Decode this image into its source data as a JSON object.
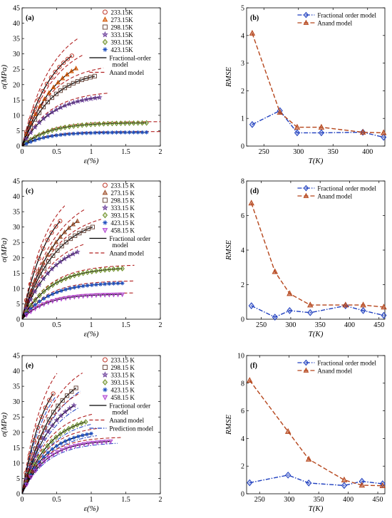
{
  "chart_data": [
    {
      "id": "a",
      "type": "line",
      "panel_label": "(a)",
      "xlabel": "ε(%)",
      "ylabel": "σ(MPa)",
      "xlim": [
        0,
        2
      ],
      "ylim": [
        0,
        45
      ],
      "xticks": [
        "0",
        "0.5",
        "1",
        "1.5",
        "2"
      ],
      "yticks": [
        "0",
        "5",
        "10",
        "15",
        "20",
        "25",
        "30",
        "35",
        "40",
        "45"
      ],
      "xtick_values": [
        0,
        0.5,
        1,
        1.5,
        2
      ],
      "ytick_values": [
        0,
        5,
        10,
        15,
        20,
        25,
        30,
        35,
        40,
        45
      ],
      "legend": {
        "position": "top-right",
        "markers": [
          {
            "label": "233.15K",
            "marker": "circle",
            "color": "#c0392b"
          },
          {
            "label": "273.15K",
            "marker": "triangle",
            "color": "#d35400"
          },
          {
            "label": "298.15K",
            "marker": "square",
            "color": "#6d4c41"
          },
          {
            "label": "333.15K",
            "marker": "star",
            "color": "#6a3d9a"
          },
          {
            "label": "393.15K",
            "marker": "diamond",
            "color": "#6b8e23"
          },
          {
            "label": "423.15K",
            "marker": "asterisk",
            "color": "#1f4fbf"
          }
        ],
        "lines": [
          {
            "label": "Fractional-order model",
            "style": "solid",
            "color": "#000000"
          },
          {
            "label": "Anand model",
            "style": "dashed",
            "color": "#b22222"
          }
        ]
      },
      "series": [
        {
          "marker": "circle",
          "color": "#c0392b",
          "sat": 37,
          "eps_max": 0.72,
          "k": 2.2
        },
        {
          "marker": "triangle",
          "color": "#d35400",
          "sat": 32,
          "eps_max": 0.78,
          "k": 2.0
        },
        {
          "marker": "square",
          "color": "#6d4c41",
          "sat": 25,
          "eps_max": 1.05,
          "k": 2.3
        },
        {
          "marker": "star",
          "color": "#6a3d9a",
          "sat": 17,
          "eps_max": 1.12,
          "k": 2.4
        },
        {
          "marker": "diamond",
          "color": "#6b8e23",
          "sat": 7.6,
          "eps_max": 1.8,
          "k": 2.6
        },
        {
          "marker": "asterisk",
          "color": "#1f4fbf",
          "sat": 4.5,
          "eps_max": 1.8,
          "k": 3.0
        }
      ],
      "anand_scale": [
        1.12,
        1.1,
        1.08,
        1.06,
        1.05,
        1.05
      ]
    },
    {
      "id": "b",
      "type": "line",
      "panel_label": "(b)",
      "xlabel": "T(K)",
      "ylabel": "RMSE",
      "xlim": [
        225,
        425
      ],
      "ylim": [
        0,
        5
      ],
      "xticks": [
        "250",
        "300",
        "350",
        "400"
      ],
      "yticks": [
        "0",
        "1",
        "2",
        "3",
        "4",
        "5"
      ],
      "xtick_values": [
        250,
        300,
        350,
        400
      ],
      "ytick_values": [
        0,
        1,
        2,
        3,
        4,
        5
      ],
      "legend": {
        "position": "top-right"
      },
      "series": [
        {
          "name": "Fractional order model",
          "marker": "diamond",
          "color": "#1f3fbf",
          "style": "dashdot",
          "x": [
            233.15,
            273.15,
            298.15,
            333.15,
            393.15,
            423.15
          ],
          "values": [
            0.78,
            1.28,
            0.48,
            0.48,
            0.5,
            0.32
          ]
        },
        {
          "name": "Anand model",
          "marker": "triangle",
          "color": "#b5451b",
          "style": "dashed",
          "x": [
            233.15,
            273.15,
            298.15,
            333.15,
            393.15,
            423.15
          ],
          "values": [
            4.08,
            1.22,
            0.68,
            0.68,
            0.5,
            0.48
          ]
        }
      ]
    },
    {
      "id": "c",
      "type": "line",
      "panel_label": "(c)",
      "xlabel": "ε(%)",
      "ylabel": "σ(MPa)",
      "xlim": [
        0,
        2
      ],
      "ylim": [
        0,
        45
      ],
      "xticks": [
        "0",
        "0.5",
        "1",
        "1.5",
        "2"
      ],
      "yticks": [
        "0",
        "5",
        "10",
        "15",
        "20",
        "25",
        "30",
        "35",
        "40",
        "45"
      ],
      "xtick_values": [
        0,
        0.5,
        1,
        1.5,
        2
      ],
      "ytick_values": [
        0,
        5,
        10,
        15,
        20,
        25,
        30,
        35,
        40,
        45
      ],
      "legend": {
        "position": "top-right",
        "markers": [
          {
            "label": "233.15 K",
            "marker": "circle",
            "color": "#c0392b"
          },
          {
            "label": "273.15 K",
            "marker": "triangle",
            "color": "#a0522d"
          },
          {
            "label": "298.15 K",
            "marker": "square",
            "color": "#6d4c41"
          },
          {
            "label": "333.15 K",
            "marker": "star",
            "color": "#6a3d9a"
          },
          {
            "label": "393.15 K",
            "marker": "diamond",
            "color": "#6b8e23"
          },
          {
            "label": "423.15 K",
            "marker": "asterisk",
            "color": "#1f4fbf"
          },
          {
            "label": "458.15 K",
            "marker": "triangle-down",
            "color": "#b040d0"
          }
        ],
        "lines": [
          {
            "label": "Fractional order model",
            "style": "solid",
            "color": "#000000"
          },
          {
            "label": "Anand model",
            "style": "dashed",
            "color": "#b22222"
          }
        ]
      },
      "series": [
        {
          "marker": "circle",
          "color": "#c0392b",
          "sat": 42,
          "eps_max": 0.55,
          "k": 2.6
        },
        {
          "marker": "triangle",
          "color": "#a0522d",
          "sat": 40,
          "eps_max": 0.8,
          "k": 2.0
        },
        {
          "marker": "square",
          "color": "#6d4c41",
          "sat": 34,
          "eps_max": 1.02,
          "k": 2.1
        },
        {
          "marker": "star",
          "color": "#6a3d9a",
          "sat": 26,
          "eps_max": 0.8,
          "k": 2.3
        },
        {
          "marker": "diamond",
          "color": "#6b8e23",
          "sat": 17,
          "eps_max": 1.45,
          "k": 2.4
        },
        {
          "marker": "asterisk",
          "color": "#1f4fbf",
          "sat": 12,
          "eps_max": 1.45,
          "k": 2.6
        },
        {
          "marker": "triangle-down",
          "color": "#b040d0",
          "sat": 8.2,
          "eps_max": 1.45,
          "k": 2.9
        }
      ],
      "anand_scale": [
        1.08,
        1.05,
        1.04,
        1.06,
        1.05,
        1.05,
        1.05
      ]
    },
    {
      "id": "d",
      "type": "line",
      "panel_label": "(d)",
      "xlabel": "T(K)",
      "ylabel": "RMSE",
      "xlim": [
        225,
        460
      ],
      "ylim": [
        0,
        8
      ],
      "xticks": [
        "250",
        "300",
        "350",
        "400",
        "450"
      ],
      "yticks": [
        "0",
        "2",
        "4",
        "6",
        "8"
      ],
      "xtick_values": [
        250,
        300,
        350,
        400,
        450
      ],
      "ytick_values": [
        0,
        2,
        4,
        6,
        8
      ],
      "legend": {
        "position": "top-right"
      },
      "series": [
        {
          "name": "Fractional order model",
          "marker": "diamond",
          "color": "#1f3fbf",
          "style": "dashdot",
          "x": [
            233.15,
            273.15,
            298.15,
            333.15,
            393.15,
            423.15,
            458.15
          ],
          "values": [
            0.78,
            0.12,
            0.5,
            0.38,
            0.78,
            0.5,
            0.22
          ]
        },
        {
          "name": "Anand model",
          "marker": "triangle",
          "color": "#b5451b",
          "style": "dashed",
          "x": [
            233.15,
            273.15,
            298.15,
            333.15,
            393.15,
            423.15,
            458.15
          ],
          "values": [
            6.72,
            2.75,
            1.48,
            0.82,
            0.82,
            0.82,
            0.7
          ]
        }
      ]
    },
    {
      "id": "e",
      "type": "line",
      "panel_label": "(e)",
      "xlabel": "ε(%)",
      "ylabel": "σ(MPa)",
      "xlim": [
        0,
        2
      ],
      "ylim": [
        0,
        45
      ],
      "xticks": [
        "0",
        "0.5",
        "1",
        "1.5",
        "2"
      ],
      "yticks": [
        "0",
        "5",
        "10",
        "15",
        "20",
        "25",
        "30",
        "35",
        "40",
        "45"
      ],
      "xtick_values": [
        0,
        0.5,
        1,
        1.5,
        2
      ],
      "ytick_values": [
        0,
        5,
        10,
        15,
        20,
        25,
        30,
        35,
        40,
        45
      ],
      "legend": {
        "position": "top-right",
        "markers": [
          {
            "label": "233.15 K",
            "marker": "circle",
            "color": "#c0392b"
          },
          {
            "label": "298.15 K",
            "marker": "square",
            "color": "#6d4c41"
          },
          {
            "label": "333.15 K",
            "marker": "star",
            "color": "#6a3d9a"
          },
          {
            "label": "393.15 K",
            "marker": "diamond",
            "color": "#6b8e23"
          },
          {
            "label": "423.15 K",
            "marker": "asterisk",
            "color": "#1f4fbf"
          },
          {
            "label": "458.15 K",
            "marker": "triangle-down",
            "color": "#b040d0"
          }
        ],
        "lines": [
          {
            "label": "Fractional order model",
            "style": "solid",
            "color": "#000000"
          },
          {
            "label": "Anand  model",
            "style": "dashed",
            "color": "#b22222"
          },
          {
            "label": "Prediction model",
            "style": "dashdot",
            "color": "#1f3fbf"
          }
        ]
      },
      "series": [
        {
          "marker": "circle",
          "color": "#c0392b",
          "sat": 44,
          "eps_max": 0.45,
          "k": 3.0
        },
        {
          "marker": "square",
          "color": "#6d4c41",
          "sat": 42,
          "eps_max": 0.78,
          "k": 2.2
        },
        {
          "marker": "star",
          "color": "#6a3d9a",
          "sat": 35,
          "eps_max": 0.75,
          "k": 2.3
        },
        {
          "marker": "diamond",
          "color": "#6b8e23",
          "sat": 26,
          "eps_max": 0.92,
          "k": 2.5
        },
        {
          "marker": "asterisk",
          "color": "#1f4fbf",
          "sat": 21,
          "eps_max": 1.0,
          "k": 2.7
        },
        {
          "marker": "triangle-down",
          "color": "#b040d0",
          "sat": 17.5,
          "eps_max": 1.28,
          "k": 2.9
        }
      ],
      "anand_scale": [
        1.12,
        1.08,
        1.08,
        1.07,
        1.06,
        1.06
      ]
    },
    {
      "id": "f",
      "type": "line",
      "panel_label": "(f)",
      "xlabel": "T(K)",
      "ylabel": "RMSE",
      "xlim": [
        228,
        462
      ],
      "ylim": [
        0,
        10
      ],
      "xticks": [
        "250",
        "300",
        "350",
        "400",
        "450"
      ],
      "yticks": [
        "0",
        "2",
        "4",
        "6",
        "8",
        "10"
      ],
      "xtick_values": [
        250,
        300,
        350,
        400,
        450
      ],
      "ytick_values": [
        0,
        2,
        4,
        6,
        8,
        10
      ],
      "legend": {
        "position": "top-right"
      },
      "series": [
        {
          "name": "Fractional order model",
          "marker": "diamond",
          "color": "#1f3fbf",
          "style": "dashdot",
          "x": [
            233.15,
            298.15,
            333.15,
            393.15,
            423.15,
            458.15
          ],
          "values": [
            0.8,
            1.35,
            0.78,
            0.6,
            0.9,
            0.72
          ]
        },
        {
          "name": "Anand model",
          "marker": "triangle",
          "color": "#b5451b",
          "style": "dashed",
          "x": [
            233.15,
            298.15,
            333.15,
            393.15,
            423.15,
            458.15
          ],
          "values": [
            8.2,
            4.5,
            2.5,
            1.0,
            0.62,
            0.58
          ]
        }
      ]
    }
  ]
}
